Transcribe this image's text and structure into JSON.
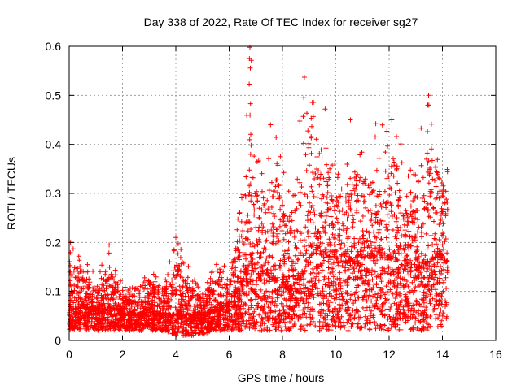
{
  "chart_data": {
    "type": "scatter",
    "title": "Day 338 of 2022, Rate Of TEC Index for receiver sg27",
    "xlabel": "GPS time / hours",
    "ylabel": "ROTI / TECUs",
    "xlim": [
      0,
      16
    ],
    "ylim": [
      0,
      0.6
    ],
    "xticks": [
      0,
      2,
      4,
      6,
      8,
      10,
      12,
      14,
      16
    ],
    "yticks": [
      0,
      0.1,
      0.2,
      0.3,
      0.4,
      0.5,
      0.6
    ],
    "xtick_labels": [
      "0",
      "2",
      "4",
      "6",
      "8",
      "10",
      "12",
      "14",
      "16"
    ],
    "ytick_labels": [
      "0",
      "0.1",
      "0.2",
      "0.3",
      "0.4",
      "0.5",
      "0.6"
    ],
    "grid": true,
    "marker": "+",
    "color": "#ff0000",
    "series": [
      {
        "name": "ROTI",
        "envelope": [
          {
            "x": 0.0,
            "base": 0.02,
            "typical": 0.06,
            "max": 0.2
          },
          {
            "x": 0.5,
            "base": 0.02,
            "typical": 0.07,
            "max": 0.18
          },
          {
            "x": 1.0,
            "base": 0.02,
            "typical": 0.06,
            "max": 0.13
          },
          {
            "x": 1.5,
            "base": 0.02,
            "typical": 0.07,
            "max": 0.19
          },
          {
            "x": 2.0,
            "base": 0.02,
            "typical": 0.05,
            "max": 0.11
          },
          {
            "x": 2.5,
            "base": 0.02,
            "typical": 0.05,
            "max": 0.11
          },
          {
            "x": 3.0,
            "base": 0.02,
            "typical": 0.06,
            "max": 0.16
          },
          {
            "x": 3.5,
            "base": 0.02,
            "typical": 0.05,
            "max": 0.11
          },
          {
            "x": 4.0,
            "base": 0.01,
            "typical": 0.05,
            "max": 0.21
          },
          {
            "x": 4.5,
            "base": 0.01,
            "typical": 0.05,
            "max": 0.15
          },
          {
            "x": 5.0,
            "base": 0.01,
            "typical": 0.05,
            "max": 0.1
          },
          {
            "x": 5.5,
            "base": 0.02,
            "typical": 0.06,
            "max": 0.17
          },
          {
            "x": 6.0,
            "base": 0.02,
            "typical": 0.07,
            "max": 0.15
          },
          {
            "x": 6.5,
            "base": 0.02,
            "typical": 0.12,
            "max": 0.32
          },
          {
            "x": 6.8,
            "base": 0.02,
            "typical": 0.15,
            "max": 0.6
          },
          {
            "x": 7.2,
            "base": 0.02,
            "typical": 0.14,
            "max": 0.38
          },
          {
            "x": 7.8,
            "base": 0.02,
            "typical": 0.12,
            "max": 0.42
          },
          {
            "x": 8.3,
            "base": 0.02,
            "typical": 0.1,
            "max": 0.3
          },
          {
            "x": 8.8,
            "base": 0.02,
            "typical": 0.14,
            "max": 0.54
          },
          {
            "x": 9.3,
            "base": 0.02,
            "typical": 0.18,
            "max": 0.47
          },
          {
            "x": 9.8,
            "base": 0.02,
            "typical": 0.16,
            "max": 0.38
          },
          {
            "x": 10.3,
            "base": 0.02,
            "typical": 0.15,
            "max": 0.34
          },
          {
            "x": 10.7,
            "base": 0.02,
            "typical": 0.16,
            "max": 0.45
          },
          {
            "x": 11.2,
            "base": 0.02,
            "typical": 0.17,
            "max": 0.39
          },
          {
            "x": 11.7,
            "base": 0.02,
            "typical": 0.17,
            "max": 0.44
          },
          {
            "x": 12.2,
            "base": 0.02,
            "typical": 0.16,
            "max": 0.45
          },
          {
            "x": 12.7,
            "base": 0.02,
            "typical": 0.15,
            "max": 0.36
          },
          {
            "x": 13.2,
            "base": 0.02,
            "typical": 0.14,
            "max": 0.43
          },
          {
            "x": 13.5,
            "base": 0.02,
            "typical": 0.16,
            "max": 0.5
          },
          {
            "x": 14.0,
            "base": 0.03,
            "typical": 0.17,
            "max": 0.39
          },
          {
            "x": 14.2,
            "base": 0.05,
            "typical": 0.15,
            "max": 0.38
          }
        ],
        "notable_points": [
          {
            "x": 6.78,
            "y": 0.598
          },
          {
            "x": 6.76,
            "y": 0.575
          },
          {
            "x": 6.75,
            "y": 0.523
          },
          {
            "x": 6.8,
            "y": 0.483
          },
          {
            "x": 8.82,
            "y": 0.537
          },
          {
            "x": 8.8,
            "y": 0.495
          },
          {
            "x": 13.48,
            "y": 0.5
          },
          {
            "x": 13.45,
            "y": 0.48
          },
          {
            "x": 9.6,
            "y": 0.472
          },
          {
            "x": 12.1,
            "y": 0.45
          },
          {
            "x": 11.5,
            "y": 0.442
          },
          {
            "x": 10.55,
            "y": 0.45
          },
          {
            "x": 13.2,
            "y": 0.433
          },
          {
            "x": 7.55,
            "y": 0.44
          },
          {
            "x": 4.0,
            "y": 0.21
          },
          {
            "x": 1.5,
            "y": 0.195
          },
          {
            "x": 0.05,
            "y": 0.2
          }
        ],
        "sample_count": 4200
      }
    ]
  }
}
